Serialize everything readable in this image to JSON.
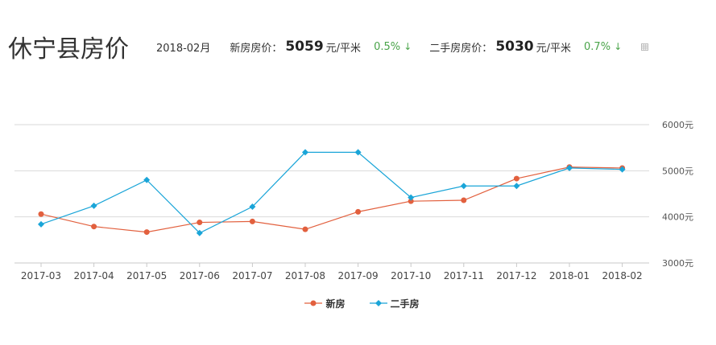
{
  "header": {
    "title": "休宁县房价",
    "date": "2018-02月",
    "new_label": "新房房价：",
    "new_price": "5059",
    "new_unit": "元/平米",
    "new_change": "0.5%",
    "second_label": "二手房房价：",
    "second_price": "5030",
    "second_unit": "元/平米",
    "second_change": "0.7%",
    "change_arrow": "↓"
  },
  "colors": {
    "new": "#e2603e",
    "second": "#1aa5d8",
    "change": "#4aa44a",
    "grid": "#d9d9d9"
  },
  "chart_data": {
    "type": "line",
    "categories": [
      "2017-03",
      "2017-04",
      "2017-05",
      "2017-06",
      "2017-07",
      "2017-08",
      "2017-09",
      "2017-10",
      "2017-11",
      "2017-12",
      "2018-01",
      "2018-02"
    ],
    "series": [
      {
        "name": "新房",
        "color": "#e2603e",
        "marker": "circle",
        "values": [
          4060,
          3790,
          3670,
          3880,
          3900,
          3730,
          4110,
          4340,
          4360,
          4830,
          5080,
          5059
        ]
      },
      {
        "name": "二手房",
        "color": "#1aa5d8",
        "marker": "diamond",
        "values": [
          3840,
          4240,
          4800,
          3650,
          4220,
          5400,
          5400,
          4420,
          4670,
          4670,
          5060,
          5030
        ]
      }
    ],
    "ylim": [
      3000,
      6000
    ],
    "yticks": [
      "3000元",
      "4000元",
      "5000元",
      "6000元"
    ],
    "y_axis_side": "right",
    "grid": true,
    "legend": "bottom-center"
  }
}
